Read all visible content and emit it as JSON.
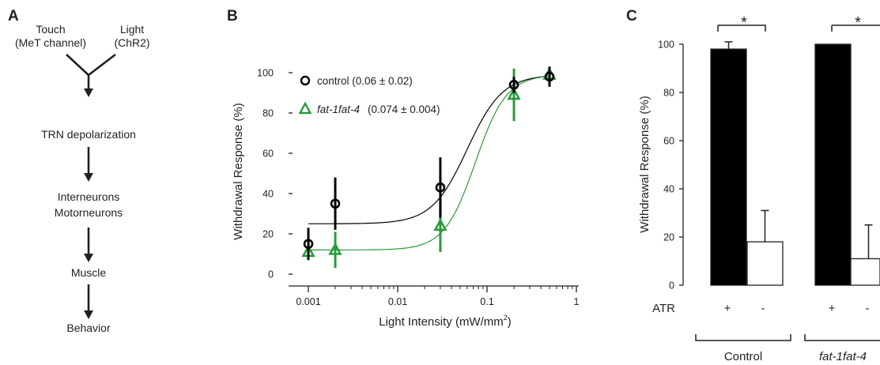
{
  "panel_labels": [
    "A",
    "B",
    "C"
  ],
  "panel_a": {
    "touch_line1": "Touch",
    "touch_line2": "(MeT channel)",
    "light_line1": "Light",
    "light_line2": "(ChR2)",
    "steps": [
      "TRN depolarization",
      "Interneurons",
      "Motorneurons",
      "Muscle",
      "Behavior"
    ]
  },
  "chart_data": [
    {
      "type": "scatter",
      "panel": "B",
      "xlabel": "Light Intensity (mW/mm",
      "xlabel_superscript": "2",
      "xlabel_close": ")",
      "ylabel": "Withdrawal Response (%)",
      "x_scale": "log",
      "xlim": [
        0.001,
        1
      ],
      "ylim": [
        0,
        100
      ],
      "x_ticks": [
        0.001,
        0.01,
        0.1,
        1
      ],
      "x_tick_labels": [
        "0.001",
        "0.01",
        "0.1",
        "1"
      ],
      "y_ticks": [
        0,
        20,
        40,
        60,
        80,
        100
      ],
      "y_tick_labels": [
        "0",
        "20",
        "40",
        "60",
        "80",
        "100"
      ],
      "legend_position": "top-left",
      "series": [
        {
          "name": "control",
          "legend_value": "(0.06 ± 0.02)",
          "marker": "circle",
          "color": "#000000",
          "points": [
            {
              "x": 0.001,
              "y": 15,
              "err": 8
            },
            {
              "x": 0.002,
              "y": 35,
              "err": 13
            },
            {
              "x": 0.03,
              "y": 43,
              "err": 15
            },
            {
              "x": 0.2,
              "y": 94,
              "err": 4
            },
            {
              "x": 0.5,
              "y": 98,
              "err": 5
            }
          ],
          "fit": {
            "bottom": 25,
            "top": 99,
            "ec50": 0.06,
            "hill": 2.2
          }
        },
        {
          "name": "fat-1fat-4",
          "legend_value": "(0.074 ± 0.004)",
          "marker": "triangle",
          "color": "#2b9a3c",
          "points": [
            {
              "x": 0.001,
              "y": 11,
              "err": 4
            },
            {
              "x": 0.002,
              "y": 12,
              "err": 9
            },
            {
              "x": 0.03,
              "y": 24,
              "err": 13
            },
            {
              "x": 0.2,
              "y": 89,
              "err": 13
            },
            {
              "x": 0.5,
              "y": 99,
              "err": 4
            }
          ],
          "fit": {
            "bottom": 12,
            "top": 99,
            "ec50": 0.074,
            "hill": 2.5
          }
        }
      ]
    },
    {
      "type": "bar",
      "panel": "C",
      "ylabel": "Withdrawal Response (%)",
      "ylim": [
        0,
        100
      ],
      "y_ticks": [
        0,
        20,
        40,
        60,
        80,
        100
      ],
      "y_tick_labels": [
        "0",
        "20",
        "40",
        "60",
        "80",
        "100"
      ],
      "row_label": "ATR",
      "bars": [
        {
          "group": "Control",
          "atr": "+",
          "value": 98,
          "err": 3,
          "fill": "#000000"
        },
        {
          "group": "Control",
          "atr": "-",
          "value": 18,
          "err": 13,
          "fill": "#ffffff"
        },
        {
          "group": "fat-1fat-4",
          "atr": "+",
          "value": 100,
          "err": 0,
          "fill": "#000000"
        },
        {
          "group": "fat-1fat-4",
          "atr": "-",
          "value": 11,
          "err": 14,
          "fill": "#ffffff"
        }
      ],
      "groups": [
        "Control",
        "fat-1fat-4"
      ],
      "significance": [
        "*",
        "*"
      ]
    }
  ]
}
